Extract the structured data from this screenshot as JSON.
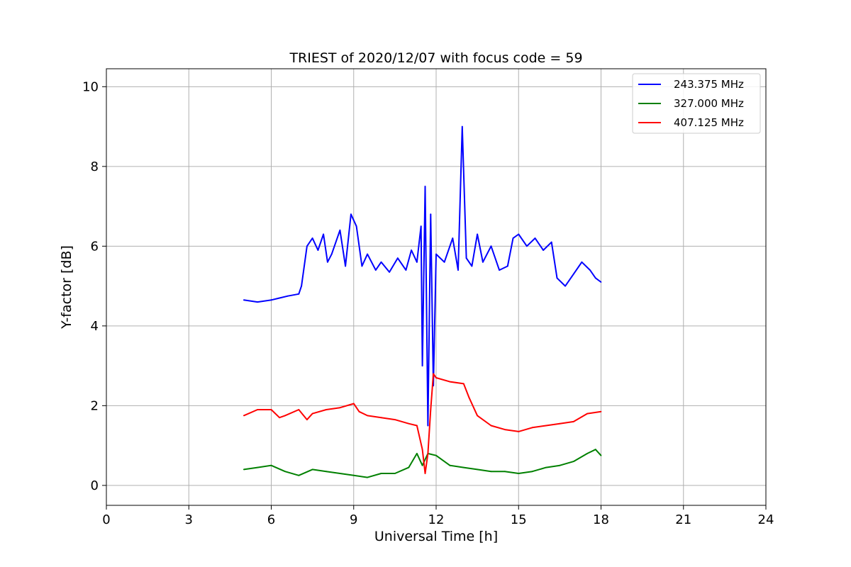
{
  "chart_data": {
    "type": "line",
    "title": "TRIEST of 2020/12/07 with focus code = 59",
    "xlabel": "Universal Time [h]",
    "ylabel": "Y-factor [dB]",
    "xlim": [
      0,
      24
    ],
    "ylim": [
      -0.5,
      10.45
    ],
    "xticks": [
      0,
      3,
      6,
      9,
      12,
      15,
      18,
      21,
      24
    ],
    "xtick_labels": [
      "0",
      "3",
      "6",
      "9",
      "12",
      "15",
      "18",
      "21",
      "24"
    ],
    "yticks": [
      0,
      2,
      4,
      6,
      8,
      10
    ],
    "ytick_labels": [
      "0",
      "2",
      "4",
      "6",
      "8",
      "10"
    ],
    "grid": true,
    "legend_position": "top-right",
    "series": [
      {
        "name": "243.375 MHz",
        "color": "#0000ff",
        "x": [
          5.0,
          5.5,
          6.0,
          6.3,
          6.6,
          7.0,
          7.1,
          7.3,
          7.5,
          7.7,
          7.9,
          8.05,
          8.2,
          8.5,
          8.7,
          8.9,
          9.1,
          9.3,
          9.5,
          9.8,
          10.0,
          10.3,
          10.6,
          10.9,
          11.1,
          11.3,
          11.45,
          11.5,
          11.6,
          11.7,
          11.8,
          11.9,
          12.0,
          12.3,
          12.6,
          12.8,
          12.95,
          13.1,
          13.3,
          13.5,
          13.7,
          14.0,
          14.3,
          14.6,
          14.8,
          15.0,
          15.3,
          15.6,
          15.9,
          16.2,
          16.4,
          16.7,
          17.0,
          17.3,
          17.6,
          17.8,
          18.0
        ],
        "y": [
          4.65,
          4.6,
          4.65,
          4.7,
          4.75,
          4.8,
          5.0,
          6.0,
          6.2,
          5.9,
          6.3,
          5.6,
          5.8,
          6.4,
          5.5,
          6.8,
          6.5,
          5.5,
          5.8,
          5.4,
          5.6,
          5.35,
          5.7,
          5.4,
          5.9,
          5.6,
          6.5,
          3.0,
          7.5,
          1.5,
          6.8,
          2.5,
          5.8,
          5.6,
          6.2,
          5.4,
          9.0,
          5.7,
          5.5,
          6.3,
          5.6,
          6.0,
          5.4,
          5.5,
          6.2,
          6.3,
          6.0,
          6.2,
          5.9,
          6.1,
          5.2,
          5.0,
          5.3,
          5.6,
          5.4,
          5.2,
          5.1
        ]
      },
      {
        "name": "327.000 MHz",
        "color": "#008000",
        "x": [
          5.0,
          5.5,
          6.0,
          6.5,
          7.0,
          7.5,
          8.0,
          8.5,
          9.0,
          9.5,
          10.0,
          10.5,
          11.0,
          11.3,
          11.5,
          11.7,
          12.0,
          12.5,
          13.0,
          13.5,
          14.0,
          14.5,
          15.0,
          15.5,
          16.0,
          16.5,
          17.0,
          17.5,
          17.8,
          18.0
        ],
        "y": [
          0.4,
          0.45,
          0.5,
          0.35,
          0.25,
          0.4,
          0.35,
          0.3,
          0.25,
          0.2,
          0.3,
          0.3,
          0.45,
          0.8,
          0.5,
          0.8,
          0.75,
          0.5,
          0.45,
          0.4,
          0.35,
          0.35,
          0.3,
          0.35,
          0.45,
          0.5,
          0.6,
          0.8,
          0.9,
          0.75
        ]
      },
      {
        "name": "407.125 MHz",
        "color": "#ff0000",
        "x": [
          5.0,
          5.5,
          6.0,
          6.3,
          6.5,
          7.0,
          7.3,
          7.5,
          8.0,
          8.5,
          9.0,
          9.2,
          9.5,
          10.0,
          10.5,
          11.0,
          11.3,
          11.5,
          11.6,
          11.7,
          11.8,
          11.9,
          12.0,
          12.5,
          13.0,
          13.2,
          13.5,
          14.0,
          14.5,
          15.0,
          15.5,
          16.0,
          16.5,
          17.0,
          17.5,
          18.0
        ],
        "y": [
          1.75,
          1.9,
          1.9,
          1.7,
          1.75,
          1.9,
          1.65,
          1.8,
          1.9,
          1.95,
          2.05,
          1.85,
          1.75,
          1.7,
          1.65,
          1.55,
          1.5,
          0.9,
          0.3,
          0.8,
          1.9,
          2.8,
          2.7,
          2.6,
          2.55,
          2.2,
          1.75,
          1.5,
          1.4,
          1.35,
          1.45,
          1.5,
          1.55,
          1.6,
          1.8,
          1.85
        ]
      }
    ]
  }
}
